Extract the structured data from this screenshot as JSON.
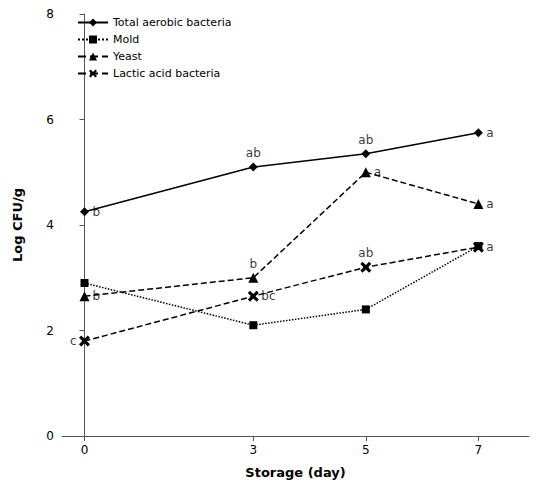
{
  "chart_data": {
    "type": "line",
    "x": [
      0,
      3,
      5,
      7
    ],
    "series": [
      {
        "name": "Total aerobic bacteria",
        "color": "#000000",
        "values": [
          4.25,
          5.1,
          5.35,
          5.75
        ],
        "marker": "diamond",
        "line_style": "solid"
      },
      {
        "name": "Mold",
        "color": "#000000",
        "values": [
          2.9,
          2.1,
          2.4,
          3.6
        ],
        "marker": "square",
        "line_style": "dotted"
      },
      {
        "name": "Yeast",
        "color": "#000000",
        "values": [
          2.65,
          3.0,
          5.0,
          4.4
        ],
        "marker": "triangle",
        "line_style": "dashed"
      },
      {
        "name": "Lactic acid bacteria",
        "color": "#000000",
        "values": [
          1.8,
          2.65,
          3.2,
          3.58
        ],
        "marker": "x",
        "line_style": "dashed"
      }
    ],
    "annotations": [
      {
        "x": 0,
        "y": 4.25,
        "text": "b",
        "position": "right"
      },
      {
        "x": 3,
        "y": 5.1,
        "text": "ab",
        "position": "top"
      },
      {
        "x": 5,
        "y": 5.35,
        "text": "ab",
        "position": "top"
      },
      {
        "x": 7,
        "y": 5.75,
        "text": "a",
        "position": "right"
      },
      {
        "x": 0,
        "y": 2.65,
        "text": "b",
        "position": "right"
      },
      {
        "x": 3,
        "y": 3.0,
        "text": "b",
        "position": "top"
      },
      {
        "x": 5,
        "y": 5.0,
        "text": "a",
        "position": "right"
      },
      {
        "x": 7,
        "y": 4.4,
        "text": "a",
        "position": "right"
      },
      {
        "x": 0,
        "y": 1.8,
        "text": "c",
        "position": "left"
      },
      {
        "x": 3,
        "y": 2.65,
        "text": "bc",
        "position": "right"
      },
      {
        "x": 5,
        "y": 3.2,
        "text": "ab",
        "position": "top"
      },
      {
        "x": 7,
        "y": 3.58,
        "text": "a",
        "position": "right"
      }
    ],
    "xlabel": "Storage (day)",
    "ylabel": "Log CFU/g",
    "xlim": [
      -0.4,
      7.9
    ],
    "ylim": [
      0.0,
      8.0
    ],
    "xticks": [
      0,
      3,
      5,
      7
    ],
    "yticks": [
      0,
      2,
      4,
      6,
      8
    ],
    "legend": "upper left",
    "grid": false
  }
}
